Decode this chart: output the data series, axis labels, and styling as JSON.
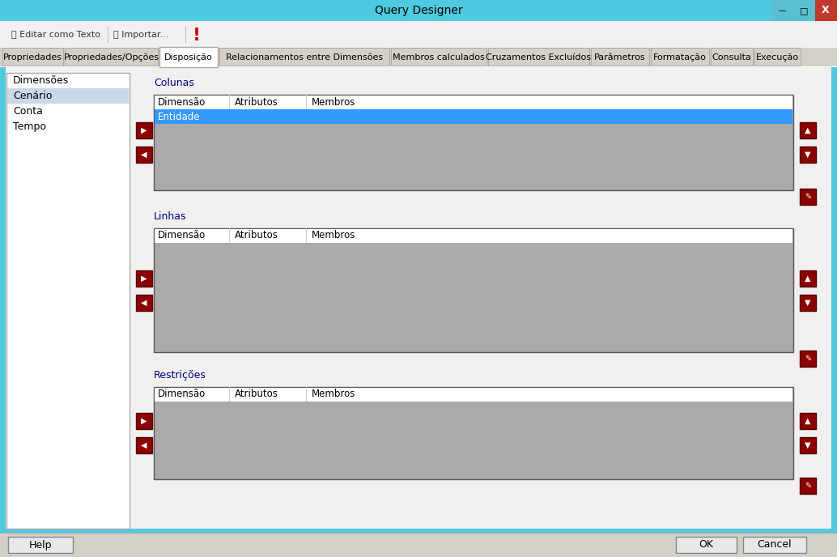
{
  "title": "Query Designer",
  "title_bar_color": "#4EC9E0",
  "window_bg": "#ECE9D8",
  "content_bg": "#F0F0F0",
  "tab_labels": [
    "Propriedades",
    "Propriedades/Opções",
    "Disposição",
    "Relacionamentos entre Dimensões",
    "Membros calculados",
    "Cruzamentos Excluídos",
    "Parâmetros",
    "Formatação",
    "Consulta",
    "Execução"
  ],
  "active_tab": "Disposição",
  "left_panel_items": [
    "Dimensões",
    "Cenário",
    "Conta",
    "Tempo"
  ],
  "left_panel_selected": "Cenário",
  "section_labels": [
    "Colunas",
    "Linhas",
    "Restrições"
  ],
  "table_headers": [
    "Dimensão",
    "Atributos",
    "Membros"
  ],
  "colunas_row": "Entidade",
  "highlight_color": "#3399FF",
  "highlight_text_color": "#FFFFFF",
  "table_bg": "#AAAAAA",
  "button_color": "#8B0000",
  "section_text_color": "#000080",
  "tab_font_size": 8,
  "title_font_size": 10
}
